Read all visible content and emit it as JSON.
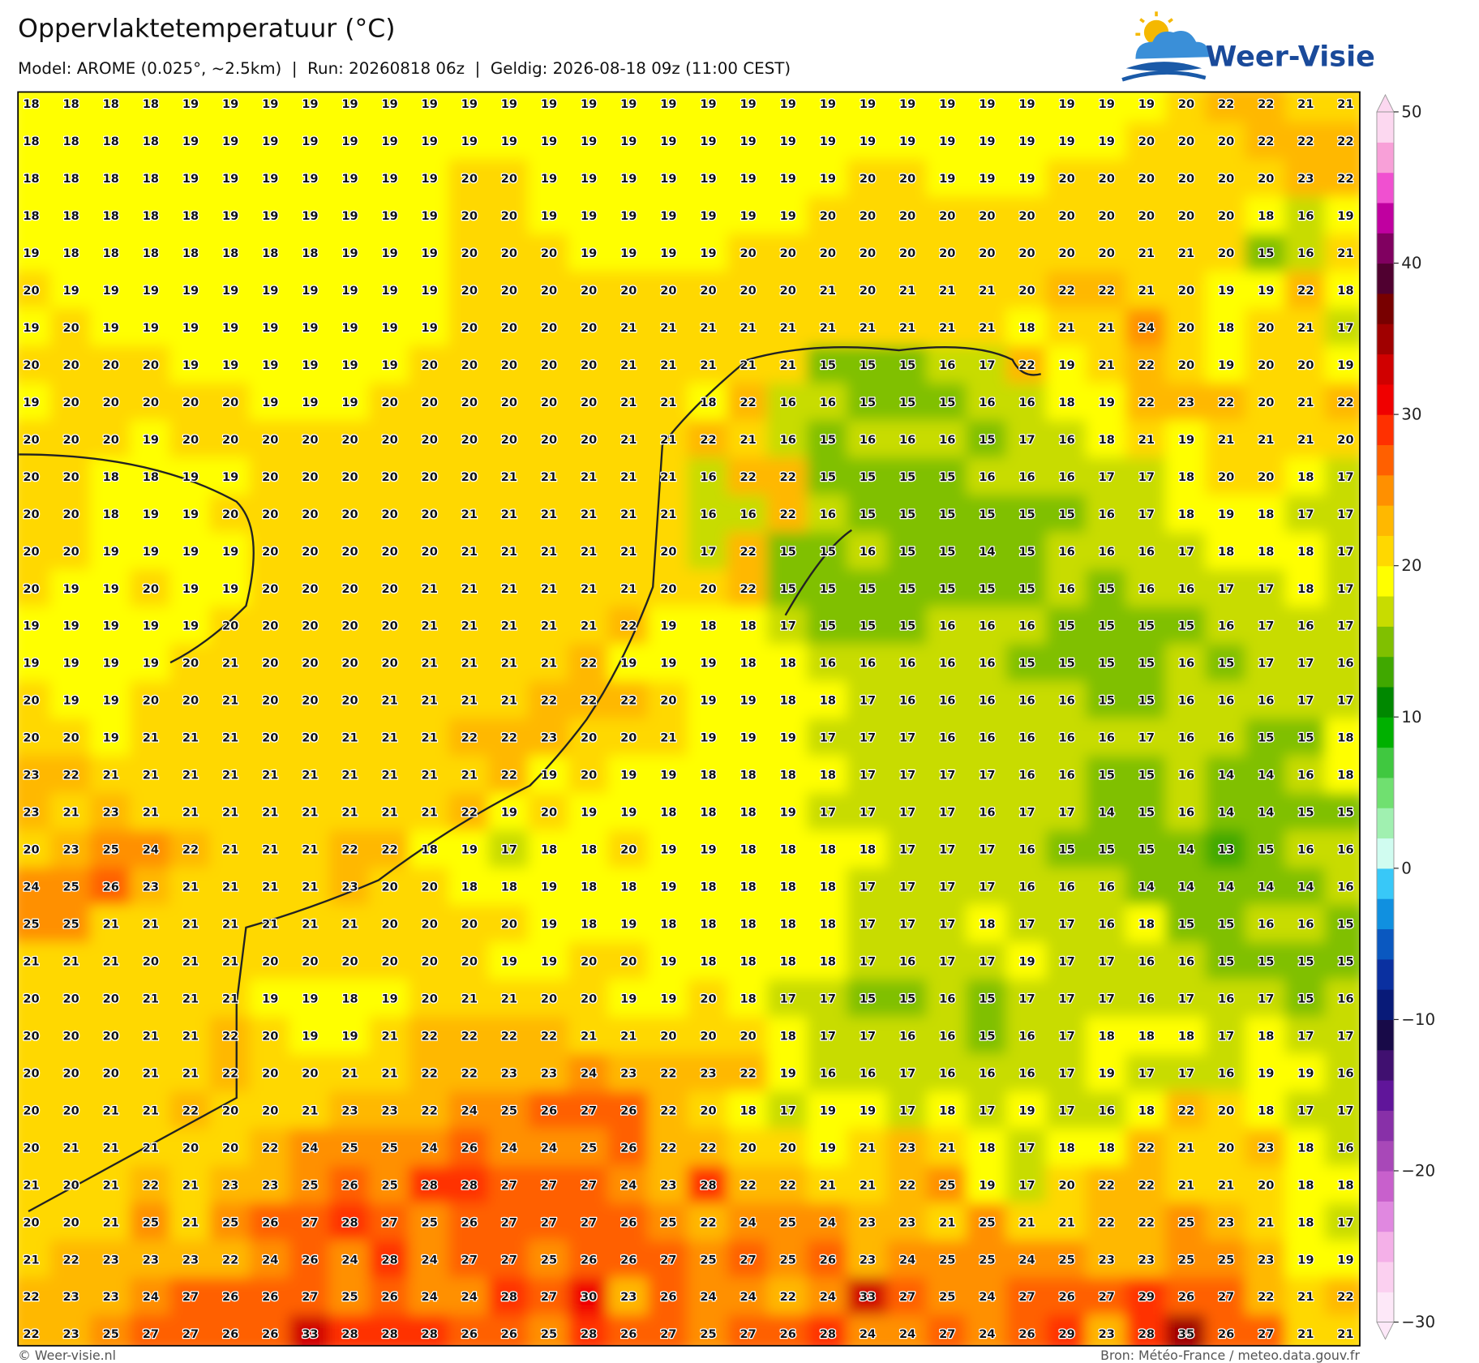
{
  "header": {
    "title": "Oppervlaktetemperatuur (°C)",
    "subtitle": "Model: AROME (0.025°, ~2.5km)  |  Run: 20260818 06z  |  Geldig: 2026-08-18 09z (11:00 CEST)",
    "logo": "Weer-Visie"
  },
  "grid": {
    "rows": [
      [
        18,
        18,
        18,
        18,
        19,
        19,
        19,
        19,
        19,
        19,
        19,
        19,
        19,
        19,
        19,
        19,
        19,
        19,
        19,
        19,
        19,
        19,
        19,
        19,
        19,
        19,
        19,
        19,
        19,
        20,
        22,
        22,
        21,
        21
      ],
      [
        18,
        18,
        18,
        18,
        19,
        19,
        19,
        19,
        19,
        19,
        19,
        19,
        19,
        19,
        19,
        19,
        19,
        19,
        19,
        19,
        19,
        19,
        19,
        19,
        19,
        19,
        19,
        19,
        20,
        20,
        20,
        22,
        22,
        22
      ],
      [
        18,
        18,
        18,
        18,
        19,
        19,
        19,
        19,
        19,
        19,
        19,
        20,
        20,
        19,
        19,
        19,
        19,
        19,
        19,
        19,
        19,
        20,
        20,
        19,
        19,
        19,
        20,
        20,
        20,
        20,
        20,
        20,
        23,
        22
      ],
      [
        18,
        18,
        18,
        18,
        18,
        19,
        19,
        19,
        19,
        19,
        19,
        20,
        20,
        19,
        19,
        19,
        19,
        19,
        19,
        19,
        20,
        20,
        20,
        20,
        20,
        20,
        20,
        20,
        20,
        20,
        20,
        18,
        16,
        19
      ],
      [
        19,
        18,
        18,
        18,
        18,
        18,
        18,
        18,
        19,
        19,
        19,
        20,
        20,
        20,
        19,
        19,
        19,
        19,
        20,
        20,
        20,
        20,
        20,
        20,
        20,
        20,
        20,
        20,
        21,
        21,
        20,
        15,
        16,
        21
      ],
      [
        20,
        19,
        19,
        19,
        19,
        19,
        19,
        19,
        19,
        19,
        19,
        20,
        20,
        20,
        20,
        20,
        20,
        20,
        20,
        20,
        21,
        20,
        21,
        21,
        21,
        20,
        22,
        22,
        21,
        20,
        19,
        19,
        22,
        18
      ],
      [
        19,
        20,
        19,
        19,
        19,
        19,
        19,
        19,
        19,
        19,
        19,
        20,
        20,
        20,
        20,
        21,
        21,
        21,
        21,
        21,
        21,
        21,
        21,
        21,
        21,
        18,
        21,
        21,
        24,
        20,
        18,
        20,
        21,
        17
      ],
      [
        20,
        20,
        20,
        20,
        19,
        19,
        19,
        19,
        19,
        19,
        20,
        20,
        20,
        20,
        20,
        21,
        21,
        21,
        21,
        21,
        15,
        15,
        15,
        16,
        17,
        22,
        19,
        21,
        22,
        20,
        19,
        20,
        20,
        19
      ],
      [
        19,
        20,
        20,
        20,
        20,
        20,
        19,
        19,
        19,
        20,
        20,
        20,
        20,
        20,
        20,
        21,
        21,
        18,
        22,
        16,
        16,
        15,
        15,
        15,
        16,
        16,
        18,
        19,
        22,
        23,
        22,
        20,
        21,
        22
      ],
      [
        20,
        20,
        20,
        19,
        20,
        20,
        20,
        20,
        20,
        20,
        20,
        20,
        20,
        20,
        20,
        21,
        21,
        22,
        21,
        16,
        15,
        16,
        16,
        16,
        15,
        17,
        16,
        18,
        21,
        19,
        21,
        21,
        21,
        20
      ],
      [
        20,
        20,
        18,
        18,
        19,
        19,
        20,
        20,
        20,
        20,
        20,
        20,
        21,
        21,
        21,
        21,
        21,
        16,
        22,
        22,
        15,
        15,
        15,
        15,
        16,
        16,
        16,
        17,
        17,
        18,
        20,
        20,
        18,
        17
      ],
      [
        20,
        20,
        18,
        19,
        19,
        20,
        20,
        20,
        20,
        20,
        20,
        21,
        21,
        21,
        21,
        21,
        21,
        16,
        16,
        22,
        16,
        15,
        15,
        15,
        15,
        15,
        15,
        16,
        17,
        18,
        19,
        18,
        17,
        17
      ],
      [
        20,
        20,
        19,
        19,
        19,
        19,
        20,
        20,
        20,
        20,
        20,
        21,
        21,
        21,
        21,
        21,
        20,
        17,
        22,
        15,
        15,
        16,
        15,
        15,
        14,
        15,
        16,
        16,
        16,
        17,
        18,
        18,
        18,
        17
      ],
      [
        20,
        19,
        19,
        20,
        19,
        19,
        20,
        20,
        20,
        20,
        21,
        21,
        21,
        21,
        21,
        21,
        20,
        20,
        22,
        15,
        15,
        15,
        15,
        15,
        15,
        15,
        16,
        15,
        16,
        16,
        17,
        17,
        18,
        17
      ],
      [
        19,
        19,
        19,
        19,
        19,
        20,
        20,
        20,
        20,
        20,
        21,
        21,
        21,
        21,
        21,
        22,
        19,
        18,
        18,
        17,
        15,
        15,
        15,
        16,
        16,
        16,
        15,
        15,
        15,
        15,
        16,
        17,
        16,
        17
      ],
      [
        19,
        19,
        19,
        19,
        20,
        21,
        20,
        20,
        20,
        20,
        21,
        21,
        21,
        21,
        22,
        19,
        19,
        19,
        18,
        18,
        16,
        16,
        16,
        16,
        16,
        15,
        15,
        15,
        15,
        16,
        15,
        17,
        17,
        16
      ],
      [
        20,
        19,
        19,
        20,
        20,
        21,
        20,
        20,
        20,
        21,
        21,
        21,
        21,
        22,
        22,
        22,
        20,
        19,
        19,
        18,
        18,
        17,
        16,
        16,
        16,
        16,
        16,
        15,
        15,
        16,
        16,
        16,
        17,
        17
      ],
      [
        20,
        20,
        19,
        21,
        21,
        21,
        20,
        20,
        21,
        21,
        21,
        22,
        22,
        23,
        20,
        20,
        21,
        19,
        19,
        19,
        17,
        17,
        17,
        16,
        16,
        16,
        16,
        16,
        17,
        16,
        16,
        15,
        15,
        18
      ],
      [
        23,
        22,
        21,
        21,
        21,
        21,
        21,
        21,
        21,
        21,
        21,
        21,
        22,
        19,
        20,
        19,
        19,
        18,
        18,
        18,
        18,
        17,
        17,
        17,
        17,
        16,
        16,
        15,
        15,
        16,
        14,
        14,
        16,
        18
      ],
      [
        23,
        21,
        23,
        21,
        21,
        21,
        21,
        21,
        21,
        21,
        21,
        22,
        19,
        20,
        19,
        19,
        18,
        18,
        18,
        19,
        17,
        17,
        17,
        17,
        16,
        17,
        17,
        14,
        15,
        16,
        14,
        14,
        15,
        15
      ],
      [
        20,
        23,
        25,
        24,
        22,
        21,
        21,
        21,
        22,
        22,
        18,
        19,
        17,
        18,
        18,
        20,
        19,
        19,
        18,
        18,
        18,
        18,
        17,
        17,
        17,
        16,
        15,
        15,
        15,
        14,
        13,
        15,
        16,
        16
      ],
      [
        24,
        25,
        26,
        23,
        21,
        21,
        21,
        21,
        23,
        20,
        20,
        18,
        18,
        19,
        18,
        18,
        19,
        18,
        18,
        18,
        18,
        17,
        17,
        17,
        17,
        16,
        16,
        16,
        14,
        14,
        14,
        14,
        14,
        16
      ],
      [
        25,
        25,
        21,
        21,
        21,
        21,
        21,
        21,
        21,
        20,
        20,
        20,
        20,
        19,
        18,
        19,
        18,
        18,
        18,
        18,
        18,
        17,
        17,
        17,
        18,
        17,
        17,
        16,
        18,
        15,
        15,
        16,
        16,
        15
      ],
      [
        21,
        21,
        21,
        20,
        21,
        21,
        20,
        20,
        20,
        20,
        20,
        20,
        19,
        19,
        20,
        20,
        19,
        18,
        18,
        18,
        18,
        17,
        16,
        17,
        17,
        19,
        17,
        17,
        16,
        16,
        15,
        15,
        15,
        15
      ],
      [
        20,
        20,
        20,
        21,
        21,
        21,
        19,
        19,
        18,
        19,
        20,
        21,
        21,
        20,
        20,
        19,
        19,
        20,
        18,
        17,
        17,
        15,
        15,
        16,
        15,
        17,
        17,
        17,
        16,
        17,
        16,
        17,
        15,
        16
      ],
      [
        20,
        20,
        20,
        21,
        21,
        22,
        20,
        19,
        19,
        21,
        22,
        22,
        22,
        22,
        21,
        21,
        20,
        20,
        20,
        18,
        17,
        17,
        16,
        16,
        15,
        16,
        17,
        18,
        18,
        18,
        17,
        18,
        17,
        17
      ],
      [
        20,
        20,
        20,
        21,
        21,
        22,
        20,
        20,
        21,
        21,
        22,
        22,
        23,
        23,
        24,
        23,
        22,
        23,
        22,
        19,
        16,
        16,
        17,
        16,
        16,
        16,
        17,
        19,
        17,
        17,
        16,
        19,
        19,
        16
      ],
      [
        20,
        20,
        21,
        21,
        22,
        20,
        20,
        21,
        23,
        23,
        22,
        24,
        25,
        26,
        27,
        26,
        22,
        20,
        18,
        17,
        19,
        19,
        17,
        18,
        17,
        19,
        17,
        16,
        18,
        22,
        20,
        18,
        17,
        17
      ],
      [
        20,
        21,
        21,
        21,
        20,
        20,
        22,
        24,
        25,
        25,
        24,
        26,
        24,
        24,
        25,
        26,
        22,
        22,
        20,
        20,
        19,
        21,
        23,
        21,
        18,
        17,
        18,
        18,
        22,
        21,
        20,
        23,
        18,
        16
      ],
      [
        21,
        20,
        21,
        22,
        21,
        23,
        23,
        25,
        26,
        25,
        28,
        28,
        27,
        27,
        27,
        24,
        23,
        28,
        22,
        22,
        21,
        21,
        22,
        25,
        19,
        17,
        20,
        22,
        22,
        21,
        21,
        20,
        18,
        18
      ],
      [
        20,
        20,
        21,
        25,
        21,
        25,
        26,
        27,
        28,
        27,
        25,
        26,
        27,
        27,
        27,
        26,
        25,
        22,
        24,
        25,
        24,
        23,
        23,
        21,
        25,
        21,
        21,
        22,
        22,
        25,
        23,
        21,
        18,
        17
      ],
      [
        21,
        22,
        23,
        23,
        23,
        22,
        24,
        26,
        24,
        28,
        24,
        27,
        27,
        25,
        26,
        26,
        27,
        25,
        27,
        25,
        26,
        23,
        24,
        25,
        25,
        24,
        25,
        23,
        23,
        25,
        25,
        23,
        19,
        19
      ],
      [
        22,
        23,
        23,
        24,
        27,
        26,
        26,
        27,
        25,
        26,
        24,
        24,
        28,
        27,
        30,
        23,
        26,
        24,
        24,
        22,
        24,
        33,
        27,
        25,
        24,
        27,
        26,
        27,
        29,
        26,
        27,
        22,
        21,
        22
      ],
      [
        22,
        23,
        25,
        27,
        27,
        26,
        26,
        33,
        28,
        28,
        28,
        26,
        26,
        25,
        28,
        26,
        27,
        25,
        27,
        26,
        28,
        24,
        24,
        27,
        24,
        26,
        29,
        23,
        28,
        35,
        26,
        27,
        21,
        21
      ]
    ]
  },
  "colorbar": {
    "lim": [
      -30,
      50
    ],
    "ticks": [
      {
        "value": -30,
        "label": "−30"
      },
      {
        "value": -20,
        "label": "−20"
      },
      {
        "value": -10,
        "label": "−10"
      },
      0,
      10,
      20,
      30,
      40,
      50
    ],
    "colors": [
      "#fde8f8",
      "#fbd0f0",
      "#f4b0e8",
      "#e088e0",
      "#c860cc",
      "#a848b8",
      "#8830a8",
      "#60159a",
      "#401070",
      "#180a48",
      "#081a78",
      "#0a30a0",
      "#0a58c0",
      "#1090e0",
      "#38c8f8",
      "#d0fcf0",
      "#a0f0b0",
      "#70e070",
      "#40c840",
      "#00b000",
      "#008800",
      "#40a800",
      "#80c000",
      "#c8dc00",
      "#ffff00",
      "#ffd800",
      "#ffb800",
      "#ff9000",
      "#ff6000",
      "#ff3000",
      "#f00000",
      "#d00000",
      "#a00000",
      "#780000",
      "#500030",
      "#800060",
      "#c000a0",
      "#f050d0",
      "#f8a0d8",
      "#fcd8f0"
    ]
  },
  "footer": {
    "left": "© Weer-visie.nl",
    "right": "Bron: Météo-France / meteo.data.gouv.fr"
  }
}
